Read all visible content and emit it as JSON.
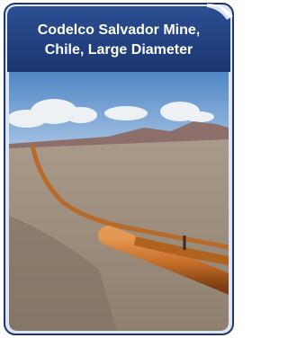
{
  "card": {
    "title_lines": [
      "Codelco Salvador Mine,",
      "Chile, Large Diameter"
    ]
  }
}
